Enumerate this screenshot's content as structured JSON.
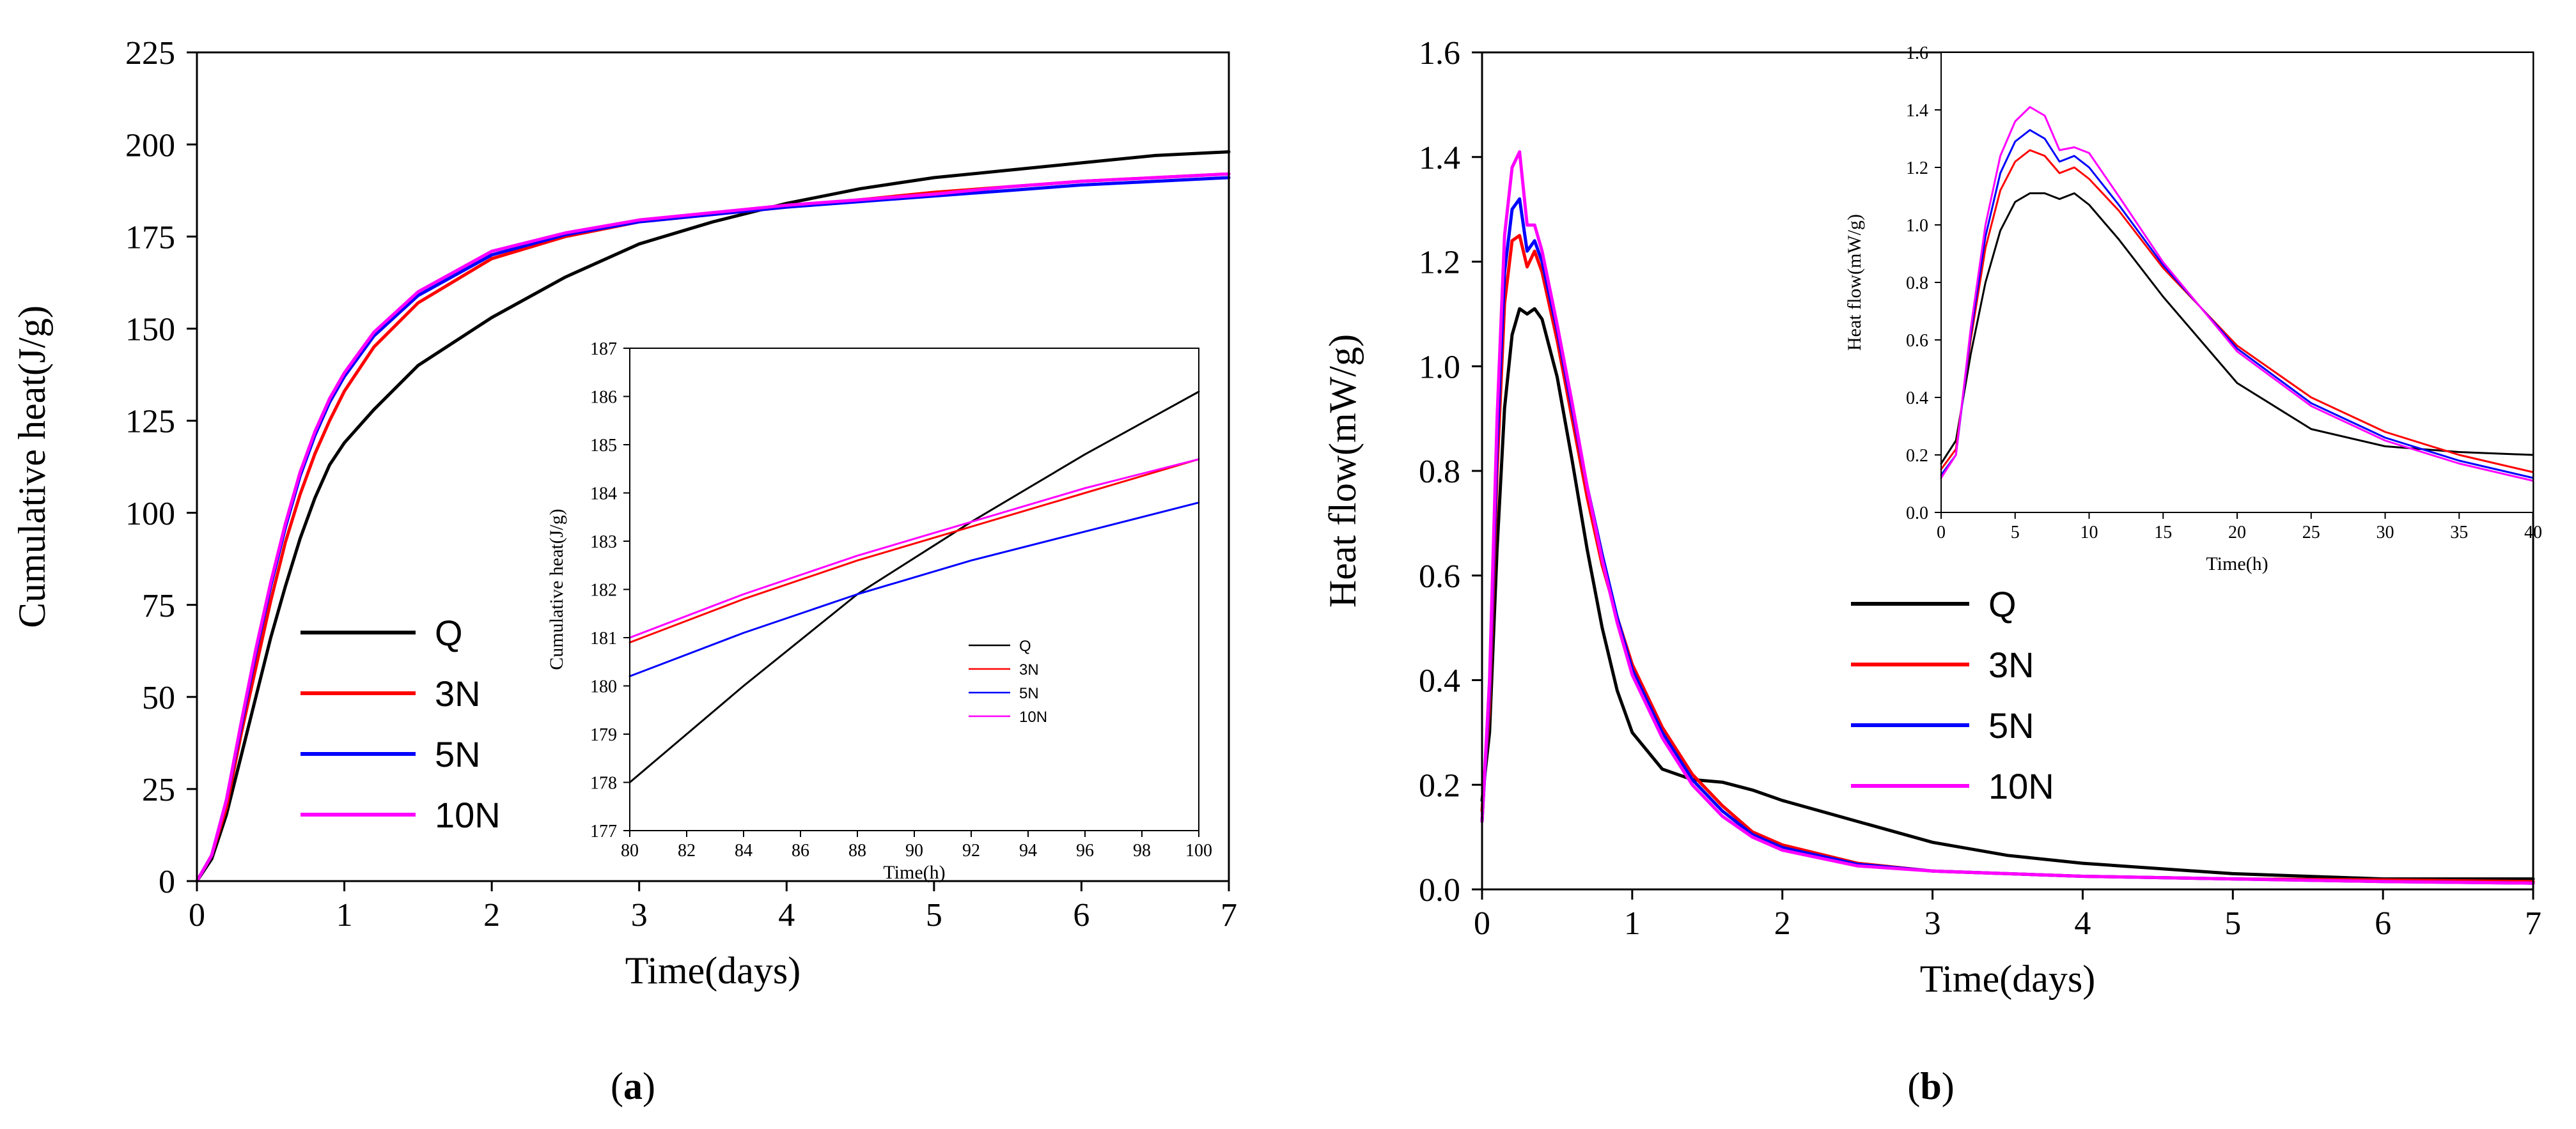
{
  "colors": {
    "Q": "#000000",
    "3N": "#ff0000",
    "5N": "#0000ff",
    "10N": "#ff00ff"
  },
  "panels": [
    {
      "id": "a",
      "caption": {
        "open": "(",
        "letter": "a",
        "close": ")"
      }
    },
    {
      "id": "b",
      "caption": {
        "open": "(",
        "letter": "b",
        "close": ")"
      }
    }
  ],
  "chart_data": [
    {
      "id": "a-main",
      "type": "line",
      "xlabel": "Time(days)",
      "ylabel": "Cumulative heat(J/g)",
      "xlim": [
        0,
        7
      ],
      "ylim": [
        0,
        225
      ],
      "xticks": [
        0,
        1,
        2,
        3,
        4,
        5,
        6,
        7
      ],
      "yticks": [
        0,
        25,
        50,
        75,
        100,
        125,
        150,
        175,
        200,
        225
      ],
      "legend": "lower-left",
      "series": [
        {
          "name": "Q",
          "color": "#000000",
          "x": [
            0,
            0.1,
            0.2,
            0.3,
            0.4,
            0.5,
            0.6,
            0.7,
            0.8,
            0.9,
            1.0,
            1.2,
            1.5,
            2.0,
            2.5,
            3.0,
            3.5,
            4.0,
            4.5,
            5.0,
            5.5,
            6.0,
            6.5,
            7.0
          ],
          "y": [
            0,
            6,
            18,
            34,
            50,
            66,
            80,
            93,
            104,
            113,
            119,
            128,
            140,
            153,
            164,
            173,
            179,
            184,
            188,
            191,
            193,
            195,
            197,
            198
          ]
        },
        {
          "name": "3N",
          "color": "#ff0000",
          "x": [
            0,
            0.1,
            0.2,
            0.3,
            0.4,
            0.5,
            0.6,
            0.7,
            0.8,
            0.9,
            1.0,
            1.2,
            1.5,
            2.0,
            2.5,
            3.0,
            3.5,
            4.0,
            4.5,
            5.0,
            5.5,
            6.0,
            6.5,
            7.0
          ],
          "y": [
            0,
            7,
            20,
            40,
            58,
            76,
            92,
            105,
            116,
            125,
            133,
            145,
            157,
            169,
            175,
            179,
            181,
            183,
            185,
            187,
            188.5,
            190,
            191,
            192
          ]
        },
        {
          "name": "5N",
          "color": "#0000ff",
          "x": [
            0,
            0.1,
            0.2,
            0.3,
            0.4,
            0.5,
            0.6,
            0.7,
            0.8,
            0.9,
            1.0,
            1.2,
            1.5,
            2.0,
            2.5,
            3.0,
            3.5,
            4.0,
            4.5,
            5.0,
            5.5,
            6.0,
            6.5,
            7.0
          ],
          "y": [
            0,
            7,
            22,
            42,
            62,
            80,
            96,
            110,
            121,
            130,
            137,
            148,
            159,
            170,
            175.5,
            179,
            181,
            183,
            184.5,
            186,
            187.5,
            189,
            190,
            191
          ]
        },
        {
          "name": "10N",
          "color": "#ff00ff",
          "x": [
            0,
            0.1,
            0.2,
            0.3,
            0.4,
            0.5,
            0.6,
            0.7,
            0.8,
            0.9,
            1.0,
            1.2,
            1.5,
            2.0,
            2.5,
            3.0,
            3.5,
            4.0,
            4.5,
            5.0,
            5.5,
            6.0,
            6.5,
            7.0
          ],
          "y": [
            0,
            7,
            22,
            43,
            63,
            81,
            97,
            111,
            122,
            131,
            138,
            149,
            160,
            171,
            176,
            179.5,
            181.5,
            183.5,
            185,
            186.5,
            188.5,
            190,
            191,
            192
          ]
        }
      ]
    },
    {
      "id": "a-inset",
      "type": "line",
      "xlabel": "Time(h)",
      "ylabel": "Cumulative heat(J/g)",
      "xlim": [
        80,
        100
      ],
      "ylim": [
        177,
        187
      ],
      "xticks": [
        80,
        82,
        84,
        86,
        88,
        90,
        92,
        94,
        96,
        98,
        100
      ],
      "yticks": [
        177,
        178,
        179,
        180,
        181,
        182,
        183,
        184,
        185,
        186,
        187
      ],
      "legend": "lower-right",
      "series": [
        {
          "name": "Q",
          "color": "#000000",
          "x": [
            80,
            84,
            88,
            92,
            96,
            100
          ],
          "y": [
            178.0,
            180.0,
            181.9,
            183.4,
            184.8,
            186.1
          ]
        },
        {
          "name": "3N",
          "color": "#ff0000",
          "x": [
            80,
            84,
            88,
            92,
            96,
            100
          ],
          "y": [
            180.9,
            181.8,
            182.6,
            183.3,
            184.0,
            184.7
          ]
        },
        {
          "name": "5N",
          "color": "#0000ff",
          "x": [
            80,
            84,
            88,
            92,
            96,
            100
          ],
          "y": [
            180.2,
            181.1,
            181.9,
            182.6,
            183.2,
            183.8
          ]
        },
        {
          "name": "10N",
          "color": "#ff00ff",
          "x": [
            80,
            84,
            88,
            92,
            96,
            100
          ],
          "y": [
            181.0,
            181.9,
            182.7,
            183.4,
            184.1,
            184.7
          ]
        }
      ]
    },
    {
      "id": "b-main",
      "type": "line",
      "xlabel": "Time(days)",
      "ylabel": "Heat flow(mW/g)",
      "xlim": [
        0,
        7
      ],
      "ylim": [
        0,
        1.6
      ],
      "xticks": [
        0,
        1,
        2,
        3,
        4,
        5,
        6,
        7
      ],
      "yticks": [
        0.0,
        0.2,
        0.4,
        0.6,
        0.8,
        1.0,
        1.2,
        1.4,
        1.6
      ],
      "legend": "center-right",
      "series": [
        {
          "name": "Q",
          "color": "#000000",
          "x": [
            0,
            0.05,
            0.1,
            0.15,
            0.2,
            0.25,
            0.3,
            0.35,
            0.4,
            0.5,
            0.6,
            0.7,
            0.8,
            0.9,
            1.0,
            1.2,
            1.4,
            1.6,
            1.8,
            2.0,
            2.5,
            3.0,
            3.5,
            4.0,
            5.0,
            6.0,
            7.0
          ],
          "y": [
            0.17,
            0.3,
            0.65,
            0.92,
            1.06,
            1.11,
            1.1,
            1.11,
            1.09,
            0.98,
            0.82,
            0.65,
            0.5,
            0.38,
            0.3,
            0.23,
            0.21,
            0.205,
            0.19,
            0.17,
            0.13,
            0.09,
            0.065,
            0.05,
            0.03,
            0.02,
            0.02
          ]
        },
        {
          "name": "3N",
          "color": "#ff0000",
          "x": [
            0,
            0.05,
            0.1,
            0.15,
            0.2,
            0.25,
            0.3,
            0.35,
            0.4,
            0.5,
            0.6,
            0.7,
            0.8,
            0.9,
            1.0,
            1.2,
            1.4,
            1.6,
            1.8,
            2.0,
            2.5,
            3.0,
            3.5,
            4.0,
            5.0,
            6.0,
            7.0
          ],
          "y": [
            0.15,
            0.35,
            0.8,
            1.12,
            1.24,
            1.25,
            1.19,
            1.22,
            1.18,
            1.05,
            0.9,
            0.75,
            0.62,
            0.52,
            0.43,
            0.31,
            0.22,
            0.16,
            0.11,
            0.085,
            0.05,
            0.035,
            0.03,
            0.025,
            0.02,
            0.018,
            0.015
          ]
        },
        {
          "name": "5N",
          "color": "#0000ff",
          "x": [
            0,
            0.05,
            0.1,
            0.15,
            0.2,
            0.25,
            0.3,
            0.35,
            0.4,
            0.5,
            0.6,
            0.7,
            0.8,
            0.9,
            1.0,
            1.2,
            1.4,
            1.6,
            1.8,
            2.0,
            2.5,
            3.0,
            3.5,
            4.0,
            5.0,
            6.0,
            7.0
          ],
          "y": [
            0.13,
            0.38,
            0.85,
            1.18,
            1.3,
            1.32,
            1.22,
            1.24,
            1.2,
            1.07,
            0.92,
            0.77,
            0.64,
            0.52,
            0.42,
            0.3,
            0.21,
            0.15,
            0.105,
            0.08,
            0.048,
            0.035,
            0.03,
            0.025,
            0.02,
            0.015,
            0.012
          ]
        },
        {
          "name": "10N",
          "color": "#ff00ff",
          "x": [
            0,
            0.05,
            0.1,
            0.15,
            0.2,
            0.25,
            0.3,
            0.35,
            0.4,
            0.5,
            0.6,
            0.7,
            0.8,
            0.9,
            1.0,
            1.2,
            1.4,
            1.6,
            1.8,
            2.0,
            2.5,
            3.0,
            3.5,
            4.0,
            5.0,
            6.0,
            7.0
          ],
          "y": [
            0.13,
            0.4,
            0.9,
            1.25,
            1.38,
            1.41,
            1.27,
            1.27,
            1.22,
            1.08,
            0.93,
            0.77,
            0.63,
            0.51,
            0.41,
            0.29,
            0.2,
            0.14,
            0.1,
            0.075,
            0.045,
            0.035,
            0.03,
            0.025,
            0.02,
            0.015,
            0.012
          ]
        }
      ]
    },
    {
      "id": "b-inset",
      "type": "line",
      "xlabel": "Time(h)",
      "ylabel": "Heat flow(mW/g)",
      "xlim": [
        0,
        40
      ],
      "ylim": [
        0,
        1.6
      ],
      "xticks": [
        0,
        5,
        10,
        15,
        20,
        25,
        30,
        35,
        40
      ],
      "yticks": [
        0.0,
        0.2,
        0.4,
        0.6,
        0.8,
        1.0,
        1.2,
        1.4,
        1.6
      ],
      "series": [
        {
          "name": "Q",
          "color": "#000000",
          "x": [
            0,
            1,
            2,
            3,
            4,
            5,
            6,
            7,
            8,
            9,
            10,
            12,
            15,
            20,
            25,
            30,
            35,
            40
          ],
          "y": [
            0.17,
            0.25,
            0.55,
            0.8,
            0.98,
            1.08,
            1.11,
            1.11,
            1.09,
            1.11,
            1.07,
            0.95,
            0.75,
            0.45,
            0.29,
            0.23,
            0.21,
            0.2
          ]
        },
        {
          "name": "3N",
          "color": "#ff0000",
          "x": [
            0,
            1,
            2,
            3,
            4,
            5,
            6,
            7,
            8,
            9,
            10,
            12,
            15,
            20,
            25,
            30,
            35,
            40
          ],
          "y": [
            0.15,
            0.22,
            0.6,
            0.92,
            1.12,
            1.22,
            1.26,
            1.24,
            1.18,
            1.2,
            1.16,
            1.05,
            0.85,
            0.58,
            0.4,
            0.28,
            0.2,
            0.14
          ]
        },
        {
          "name": "5N",
          "color": "#0000ff",
          "x": [
            0,
            1,
            2,
            3,
            4,
            5,
            6,
            7,
            8,
            9,
            10,
            12,
            15,
            20,
            25,
            30,
            35,
            40
          ],
          "y": [
            0.13,
            0.2,
            0.62,
            0.96,
            1.18,
            1.29,
            1.33,
            1.3,
            1.22,
            1.24,
            1.2,
            1.07,
            0.86,
            0.57,
            0.38,
            0.26,
            0.18,
            0.12
          ]
        },
        {
          "name": "10N",
          "color": "#ff00ff",
          "x": [
            0,
            1,
            2,
            3,
            4,
            5,
            6,
            7,
            8,
            9,
            10,
            12,
            15,
            20,
            25,
            30,
            35,
            40
          ],
          "y": [
            0.12,
            0.2,
            0.64,
            1.0,
            1.24,
            1.36,
            1.41,
            1.38,
            1.26,
            1.27,
            1.25,
            1.1,
            0.87,
            0.56,
            0.37,
            0.25,
            0.17,
            0.11
          ]
        }
      ]
    }
  ]
}
